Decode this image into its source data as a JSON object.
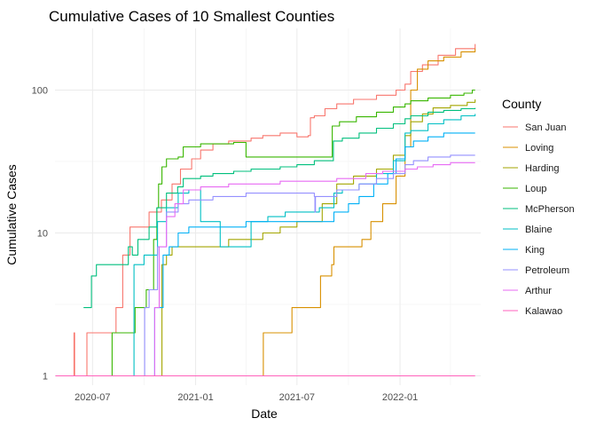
{
  "chart_data": {
    "type": "line",
    "title": "Cumulative Cases of 10 Smallest Counties",
    "xlabel": "Date",
    "ylabel": "Cumulative Cases",
    "yscale": "log10",
    "ylim": [
      0.86,
      270
    ],
    "xlim": [
      "2020-04-25",
      "2022-05-25"
    ],
    "x_ticks": [
      "2020-07",
      "2021-01",
      "2021-07",
      "2022-01"
    ],
    "y_ticks": [
      1,
      10,
      100
    ],
    "grid": true,
    "legend_title": "County",
    "legend_position": "right",
    "series": [
      {
        "name": "San Juan",
        "color": "#F8766D",
        "points": [
          [
            "2020-04-26",
            1
          ],
          [
            "2020-05-29",
            1
          ],
          [
            "2020-05-29",
            2
          ],
          [
            "2020-05-30",
            1
          ],
          [
            "2020-06-20",
            1
          ],
          [
            "2020-06-21",
            2
          ],
          [
            "2020-08-10",
            2
          ],
          [
            "2020-08-12",
            3
          ],
          [
            "2020-08-22",
            3
          ],
          [
            "2020-08-24",
            7
          ],
          [
            "2020-09-05",
            7
          ],
          [
            "2020-09-06",
            11
          ],
          [
            "2020-10-01",
            11
          ],
          [
            "2020-10-10",
            14
          ],
          [
            "2020-11-01",
            17
          ],
          [
            "2020-11-20",
            22
          ],
          [
            "2020-12-05",
            28
          ],
          [
            "2020-12-25",
            33
          ],
          [
            "2021-01-10",
            38
          ],
          [
            "2021-02-01",
            42
          ],
          [
            "2021-03-01",
            44
          ],
          [
            "2021-04-10",
            46
          ],
          [
            "2021-05-01",
            48
          ],
          [
            "2021-06-01",
            50
          ],
          [
            "2021-07-01",
            47
          ],
          [
            "2021-07-21",
            48
          ],
          [
            "2021-07-25",
            64
          ],
          [
            "2021-08-01",
            66
          ],
          [
            "2021-08-20",
            74
          ],
          [
            "2021-09-10",
            80
          ],
          [
            "2021-10-10",
            86
          ],
          [
            "2021-11-20",
            92
          ],
          [
            "2021-12-25",
            100
          ],
          [
            "2022-01-10",
            110
          ],
          [
            "2022-01-20",
            135
          ],
          [
            "2022-02-10",
            150
          ],
          [
            "2022-03-10",
            175
          ],
          [
            "2022-04-10",
            195
          ],
          [
            "2022-05-15",
            210
          ]
        ]
      },
      {
        "name": "Loving",
        "color": "#D89000",
        "points": [
          [
            "2020-04-26",
            1
          ],
          [
            "2021-05-01",
            1
          ],
          [
            "2021-05-02",
            2
          ],
          [
            "2021-06-20",
            2
          ],
          [
            "2021-06-22",
            3
          ],
          [
            "2021-08-10",
            3
          ],
          [
            "2021-08-12",
            5
          ],
          [
            "2021-09-01",
            6
          ],
          [
            "2021-09-05",
            8
          ],
          [
            "2021-10-20",
            8
          ],
          [
            "2021-10-25",
            9
          ],
          [
            "2021-11-10",
            12
          ],
          [
            "2021-12-01",
            16
          ],
          [
            "2021-12-25",
            25
          ],
          [
            "2022-01-10",
            40
          ],
          [
            "2022-01-20",
            100
          ],
          [
            "2022-02-01",
            140
          ],
          [
            "2022-02-20",
            160
          ],
          [
            "2022-03-20",
            170
          ],
          [
            "2022-04-20",
            185
          ],
          [
            "2022-05-15",
            195
          ]
        ]
      },
      {
        "name": "Harding",
        "color": "#A3A500",
        "points": [
          [
            "2020-04-26",
            1
          ],
          [
            "2020-10-30",
            1
          ],
          [
            "2020-11-02",
            6
          ],
          [
            "2020-11-10",
            7
          ],
          [
            "2020-11-20",
            8
          ],
          [
            "2021-01-10",
            8
          ],
          [
            "2021-03-01",
            9
          ],
          [
            "2021-05-01",
            10
          ],
          [
            "2021-06-01",
            11
          ],
          [
            "2021-07-01",
            12
          ],
          [
            "2021-08-15",
            16
          ],
          [
            "2021-09-10",
            22
          ],
          [
            "2021-10-10",
            25
          ],
          [
            "2021-11-20",
            28
          ],
          [
            "2021-12-20",
            35
          ],
          [
            "2022-01-10",
            48
          ],
          [
            "2022-01-20",
            60
          ],
          [
            "2022-02-10",
            68
          ],
          [
            "2022-03-01",
            75
          ],
          [
            "2022-04-01",
            78
          ],
          [
            "2022-05-01",
            82
          ],
          [
            "2022-05-15",
            86
          ]
        ]
      },
      {
        "name": "Loup",
        "color": "#39B600",
        "points": [
          [
            "2020-04-26",
            1
          ],
          [
            "2020-08-01",
            1
          ],
          [
            "2020-08-05",
            2
          ],
          [
            "2020-09-10",
            2
          ],
          [
            "2020-09-15",
            3
          ],
          [
            "2020-10-01",
            3
          ],
          [
            "2020-10-05",
            4
          ],
          [
            "2020-10-18",
            9
          ],
          [
            "2020-10-24",
            15
          ],
          [
            "2020-10-27",
            22
          ],
          [
            "2020-11-02",
            29
          ],
          [
            "2020-11-10",
            33
          ],
          [
            "2020-12-01",
            34
          ],
          [
            "2020-12-10",
            40
          ],
          [
            "2021-01-10",
            42
          ],
          [
            "2021-03-10",
            43
          ],
          [
            "2021-04-01",
            34
          ],
          [
            "2021-08-31",
            34
          ],
          [
            "2021-09-02",
            56
          ],
          [
            "2021-09-15",
            60
          ],
          [
            "2021-10-15",
            65
          ],
          [
            "2021-11-20",
            70
          ],
          [
            "2021-12-20",
            76
          ],
          [
            "2022-01-10",
            80
          ],
          [
            "2022-01-20",
            84
          ],
          [
            "2022-02-20",
            88
          ],
          [
            "2022-04-01",
            92
          ],
          [
            "2022-04-25",
            95
          ],
          [
            "2022-05-10",
            100
          ],
          [
            "2022-05-15",
            100
          ]
        ]
      },
      {
        "name": "McPherson",
        "color": "#00BF7D",
        "points": [
          [
            "2020-06-15",
            3
          ],
          [
            "2020-06-25",
            3
          ],
          [
            "2020-06-29",
            5
          ],
          [
            "2020-07-05",
            5
          ],
          [
            "2020-07-08",
            6
          ],
          [
            "2020-09-01",
            6
          ],
          [
            "2020-09-03",
            8
          ],
          [
            "2020-09-10",
            7
          ],
          [
            "2020-09-20",
            9
          ],
          [
            "2020-10-10",
            11
          ],
          [
            "2020-10-24",
            15
          ],
          [
            "2020-11-10",
            19
          ],
          [
            "2020-11-30",
            21
          ],
          [
            "2020-12-10",
            24
          ],
          [
            "2021-01-10",
            25
          ],
          [
            "2021-02-01",
            26
          ],
          [
            "2021-03-10",
            27
          ],
          [
            "2021-04-10",
            28
          ],
          [
            "2021-06-01",
            29
          ],
          [
            "2021-07-01",
            30
          ],
          [
            "2021-08-01",
            32
          ],
          [
            "2021-09-01",
            32
          ],
          [
            "2021-09-04",
            44
          ],
          [
            "2021-09-20",
            46
          ],
          [
            "2021-10-20",
            50
          ],
          [
            "2021-11-20",
            54
          ],
          [
            "2021-12-20",
            58
          ],
          [
            "2022-01-10",
            63
          ],
          [
            "2022-01-20",
            66
          ],
          [
            "2022-02-20",
            70
          ],
          [
            "2022-03-20",
            72
          ],
          [
            "2022-04-20",
            74
          ],
          [
            "2022-05-15",
            75
          ]
        ]
      },
      {
        "name": "Blaine",
        "color": "#00BFC4",
        "points": [
          [
            "2020-04-26",
            1
          ],
          [
            "2020-09-10",
            1
          ],
          [
            "2020-09-13",
            6
          ],
          [
            "2020-10-01",
            7
          ],
          [
            "2020-10-25",
            12
          ],
          [
            "2020-11-10",
            15
          ],
          [
            "2020-12-01",
            19
          ],
          [
            "2020-12-20",
            20
          ],
          [
            "2021-01-10",
            12
          ],
          [
            "2021-02-10",
            12
          ],
          [
            "2021-02-14",
            8
          ],
          [
            "2021-03-10",
            8
          ],
          [
            "2021-04-10",
            12
          ],
          [
            "2021-05-10",
            13
          ],
          [
            "2021-06-10",
            14
          ],
          [
            "2021-07-10",
            14
          ],
          [
            "2021-08-10",
            15
          ],
          [
            "2021-09-05",
            19
          ],
          [
            "2021-09-20",
            20
          ],
          [
            "2021-10-20",
            22
          ],
          [
            "2021-11-20",
            26
          ],
          [
            "2021-12-20",
            32
          ],
          [
            "2022-01-10",
            50
          ],
          [
            "2022-01-20",
            52
          ],
          [
            "2022-02-20",
            58
          ],
          [
            "2022-03-20",
            62
          ],
          [
            "2022-04-20",
            66
          ],
          [
            "2022-05-15",
            68
          ]
        ]
      },
      {
        "name": "King",
        "color": "#00B0F6",
        "points": [
          [
            "2020-04-26",
            1
          ],
          [
            "2020-10-18",
            1
          ],
          [
            "2020-10-20",
            3
          ],
          [
            "2020-11-01",
            3
          ],
          [
            "2020-11-04",
            7
          ],
          [
            "2020-11-15",
            8
          ],
          [
            "2020-12-01",
            10
          ],
          [
            "2020-12-20",
            11
          ],
          [
            "2021-01-15",
            11
          ],
          [
            "2021-03-10",
            11
          ],
          [
            "2021-04-01",
            12
          ],
          [
            "2021-06-10",
            12
          ],
          [
            "2021-08-10",
            12
          ],
          [
            "2021-09-05",
            14
          ],
          [
            "2021-10-01",
            16
          ],
          [
            "2021-10-20",
            18
          ],
          [
            "2021-11-15",
            22
          ],
          [
            "2021-12-10",
            26
          ],
          [
            "2021-12-25",
            33
          ],
          [
            "2022-01-10",
            40
          ],
          [
            "2022-01-25",
            44
          ],
          [
            "2022-02-20",
            47
          ],
          [
            "2022-03-20",
            50
          ],
          [
            "2022-05-15",
            50
          ]
        ]
      },
      {
        "name": "Petroleum",
        "color": "#9590FF",
        "points": [
          [
            "2020-04-26",
            1
          ],
          [
            "2020-09-30",
            1
          ],
          [
            "2020-10-02",
            3
          ],
          [
            "2020-10-10",
            4
          ],
          [
            "2020-10-25",
            8
          ],
          [
            "2020-11-10",
            14
          ],
          [
            "2020-12-01",
            16
          ],
          [
            "2020-12-20",
            17
          ],
          [
            "2021-02-01",
            18
          ],
          [
            "2021-04-01",
            19
          ],
          [
            "2021-06-01",
            19
          ],
          [
            "2021-08-01",
            18
          ],
          [
            "2021-08-02",
            14
          ],
          [
            "2021-08-03",
            18
          ],
          [
            "2021-09-10",
            20
          ],
          [
            "2021-10-20",
            22
          ],
          [
            "2021-11-20",
            24
          ],
          [
            "2021-12-20",
            26
          ],
          [
            "2022-01-10",
            30
          ],
          [
            "2022-01-25",
            32
          ],
          [
            "2022-02-20",
            34
          ],
          [
            "2022-04-01",
            35
          ],
          [
            "2022-05-15",
            35
          ]
        ]
      },
      {
        "name": "Arthur",
        "color": "#E76BF3",
        "points": [
          [
            "2020-04-26",
            1
          ],
          [
            "2020-10-18",
            1
          ],
          [
            "2020-10-20",
            3
          ],
          [
            "2020-10-28",
            8
          ],
          [
            "2020-11-10",
            13
          ],
          [
            "2020-11-25",
            16
          ],
          [
            "2020-12-10",
            20
          ],
          [
            "2021-01-10",
            21
          ],
          [
            "2021-03-01",
            22
          ],
          [
            "2021-06-01",
            23
          ],
          [
            "2021-09-10",
            24
          ],
          [
            "2021-11-01",
            26
          ],
          [
            "2021-12-01",
            27
          ],
          [
            "2022-01-10",
            28
          ],
          [
            "2022-02-01",
            29
          ],
          [
            "2022-03-01",
            30
          ],
          [
            "2022-04-01",
            31
          ],
          [
            "2022-05-15",
            31
          ]
        ]
      },
      {
        "name": "Kalawao",
        "color": "#FF62BC",
        "points": [
          [
            "2020-04-26",
            1
          ],
          [
            "2022-05-15",
            1
          ]
        ]
      }
    ]
  }
}
